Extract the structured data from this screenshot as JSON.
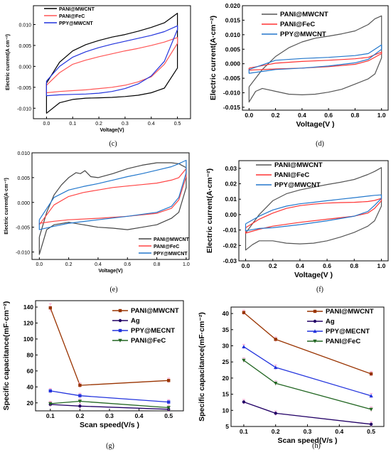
{
  "chart_data": [
    {
      "id": "c",
      "type": "line",
      "caption": "(c)",
      "xlabel": "Voltage(V)",
      "ylabel": "Electric current(A cm⁻²)",
      "xlim": [
        -0.05,
        0.55
      ],
      "ylim": [
        -0.0125,
        0.0145
      ],
      "xticks": [
        "0.0",
        "0.1",
        "0.2",
        "0.3",
        "0.4",
        "0.5"
      ],
      "yticks": [
        "-0.010",
        "-0.005",
        "0.000",
        "0.005",
        "0.010"
      ],
      "legend": "top-left",
      "series": [
        {
          "name": "PANI@MWCNT",
          "color": "#000000",
          "x": [
            0,
            0.05,
            0.1,
            0.15,
            0.2,
            0.25,
            0.3,
            0.35,
            0.4,
            0.45,
            0.5,
            0.5,
            0.45,
            0.4,
            0.35,
            0.3,
            0.25,
            0.2,
            0.15,
            0.1,
            0.05,
            0,
            0
          ],
          "y": [
            -0.004,
            0.001,
            0.0037,
            0.0052,
            0.0062,
            0.007,
            0.0076,
            0.0084,
            0.0093,
            0.0104,
            0.0127,
            -0.0004,
            -0.0052,
            -0.0063,
            -0.0069,
            -0.0072,
            -0.0074,
            -0.0075,
            -0.0076,
            -0.0079,
            -0.0087,
            -0.0112,
            -0.004
          ]
        },
        {
          "name": "PANI@FeC",
          "color": "#ff5555",
          "x": [
            0,
            0.05,
            0.1,
            0.15,
            0.2,
            0.25,
            0.3,
            0.35,
            0.4,
            0.45,
            0.5,
            0.5,
            0.45,
            0.4,
            0.35,
            0.3,
            0.25,
            0.2,
            0.15,
            0.1,
            0.05,
            0,
            0
          ],
          "y": [
            -0.0045,
            -0.0015,
            0.0005,
            0.0015,
            0.0023,
            0.003,
            0.0037,
            0.0043,
            0.005,
            0.0058,
            0.0069,
            0.0055,
            0.0005,
            -0.0025,
            -0.0037,
            -0.0045,
            -0.005,
            -0.0053,
            -0.0056,
            -0.0058,
            -0.006,
            -0.0063,
            -0.0045
          ]
        },
        {
          "name": "PPY@MWCNT",
          "color": "#2233dd",
          "x": [
            0,
            0.05,
            0.1,
            0.15,
            0.2,
            0.25,
            0.3,
            0.35,
            0.4,
            0.45,
            0.5,
            0.5,
            0.45,
            0.4,
            0.35,
            0.3,
            0.25,
            0.2,
            0.15,
            0.1,
            0.05,
            0,
            0
          ],
          "y": [
            -0.0035,
            0,
            0.0022,
            0.0035,
            0.0045,
            0.0053,
            0.006,
            0.0067,
            0.0074,
            0.0083,
            0.0097,
            0.0088,
            0.0012,
            -0.0023,
            -0.0042,
            -0.0053,
            -0.006,
            -0.0064,
            -0.0066,
            -0.0067,
            -0.0068,
            -0.007,
            -0.0035
          ]
        }
      ]
    },
    {
      "id": "d",
      "type": "line",
      "caption": "(d)",
      "xlabel": "Voltage(V )",
      "ylabel": "Electric current(A·cm⁻²)",
      "xlim": [
        -0.05,
        1.05
      ],
      "ylim": [
        -0.016,
        0.02
      ],
      "xticks": [
        "0.0",
        "0.2",
        "0.4",
        "0.6",
        "0.8",
        "1.0"
      ],
      "yticks": [
        "-0.015",
        "-0.010",
        "-0.005",
        "0.000",
        "0.005",
        "0.010",
        "0.015",
        "0.020"
      ],
      "legend": "top-left",
      "series": [
        {
          "name": "PANI@MWCNT",
          "color": "#555555",
          "x": [
            0,
            0.1,
            0.2,
            0.3,
            0.4,
            0.5,
            0.6,
            0.7,
            0.8,
            0.9,
            0.95,
            1.0,
            1.0,
            0.95,
            0.9,
            0.8,
            0.7,
            0.6,
            0.5,
            0.4,
            0.3,
            0.2,
            0.1,
            0.05,
            0,
            0
          ],
          "y": [
            -0.008,
            -0.002,
            0.0025,
            0.0055,
            0.0075,
            0.0088,
            0.0095,
            0.0103,
            0.0113,
            0.0135,
            0.0155,
            0.0165,
            0.002,
            -0.0035,
            -0.0052,
            -0.007,
            -0.0088,
            -0.0098,
            -0.0105,
            -0.0107,
            -0.0105,
            -0.0095,
            -0.0085,
            -0.0095,
            -0.0132,
            -0.008
          ]
        },
        {
          "name": "PANI@FeC",
          "color": "#ff3333",
          "x": [
            0,
            0.2,
            0.4,
            0.6,
            0.8,
            0.9,
            1.0,
            1.0,
            0.9,
            0.8,
            0.6,
            0.4,
            0.2,
            0,
            0
          ],
          "y": [
            -0.0015,
            0.0002,
            0.0008,
            0.0012,
            0.0017,
            0.0022,
            0.004,
            0.0035,
            0.001,
            -0.0002,
            -0.001,
            -0.0015,
            -0.0018,
            -0.0022,
            -0.0015
          ]
        },
        {
          "name": "PPY@MWCNT",
          "color": "#2277cc",
          "x": [
            0,
            0.2,
            0.4,
            0.6,
            0.8,
            0.9,
            1.0,
            1.0,
            0.9,
            0.8,
            0.6,
            0.4,
            0.2,
            0,
            0
          ],
          "y": [
            -0.002,
            0.0012,
            0.0018,
            0.0022,
            0.0028,
            0.0035,
            0.0065,
            0.005,
            0.0015,
            0.0003,
            -0.0008,
            -0.0015,
            -0.002,
            -0.0033,
            -0.002
          ]
        }
      ]
    },
    {
      "id": "e",
      "type": "line",
      "caption": "(e)",
      "xlabel": "Voltage(V)",
      "ylabel": "Electric current(A·cm⁻²)",
      "xlim": [
        -0.05,
        1.02
      ],
      "ylim": [
        -0.0115,
        0.01
      ],
      "xticks": [
        "0.0",
        "0.2",
        "0.4",
        "0.6",
        "0.8",
        "1.0"
      ],
      "yticks": [
        "-0.010",
        "-0.005",
        "0.000",
        "0.005",
        "0.010"
      ],
      "legend": "bottom-right",
      "series": [
        {
          "name": "PANI@MWCNT",
          "color": "#444444",
          "x": [
            0,
            0.05,
            0.1,
            0.15,
            0.2,
            0.25,
            0.28,
            0.31,
            0.35,
            0.4,
            0.5,
            0.6,
            0.7,
            0.8,
            0.9,
            0.95,
            1.0,
            1.0,
            0.95,
            0.9,
            0.8,
            0.7,
            0.6,
            0.5,
            0.4,
            0.3,
            0.2,
            0.1,
            0.05,
            0,
            0
          ],
          "y": [
            -0.007,
            -0.002,
            0.0015,
            0.0035,
            0.005,
            0.006,
            0.0058,
            0.0064,
            0.0052,
            0.005,
            0.0058,
            0.0068,
            0.0075,
            0.008,
            0.008,
            0.0078,
            0.007,
            0.003,
            -0.002,
            -0.0032,
            -0.0045,
            -0.005,
            -0.0055,
            -0.0052,
            -0.005,
            -0.0045,
            -0.004,
            -0.0045,
            -0.0055,
            -0.0105,
            -0.007
          ]
        },
        {
          "name": "PANI@FeC",
          "color": "#ff4444",
          "x": [
            0,
            0.1,
            0.2,
            0.3,
            0.4,
            0.5,
            0.6,
            0.7,
            0.8,
            0.9,
            0.95,
            1.0,
            1.0,
            0.95,
            0.9,
            0.8,
            0.6,
            0.4,
            0.2,
            0.1,
            0,
            0
          ],
          "y": [
            -0.0045,
            -0.0005,
            0.0012,
            0.002,
            0.0025,
            0.003,
            0.0033,
            0.0036,
            0.0039,
            0.0045,
            0.005,
            0.0068,
            0.0052,
            0.0005,
            -0.0012,
            -0.0022,
            -0.0028,
            -0.0032,
            -0.0035,
            -0.0038,
            -0.0042,
            -0.0045
          ]
        },
        {
          "name": "PPY@MWCNT",
          "color": "#2277cc",
          "x": [
            0,
            0.1,
            0.2,
            0.3,
            0.4,
            0.5,
            0.6,
            0.7,
            0.8,
            0.9,
            0.95,
            1.0,
            1.0,
            0.95,
            0.9,
            0.8,
            0.6,
            0.4,
            0.2,
            0.1,
            0,
            0
          ],
          "y": [
            -0.0035,
            0.001,
            0.0025,
            0.0032,
            0.0038,
            0.0045,
            0.0052,
            0.0058,
            0.0065,
            0.0072,
            0.0078,
            0.0085,
            0.006,
            0.001,
            -0.0008,
            -0.002,
            -0.0028,
            -0.0035,
            -0.0042,
            -0.0048,
            -0.0055,
            -0.0035
          ]
        }
      ]
    },
    {
      "id": "f",
      "type": "line",
      "caption": "(f)",
      "xlabel": "Voltage(V )",
      "ylabel": "Electric current(A·cm⁻²)",
      "xlim": [
        -0.05,
        1.05
      ],
      "ylim": [
        -0.03,
        0.035
      ],
      "xticks": [
        "0.0",
        "0.2",
        "0.4",
        "0.6",
        "0.8",
        "1.0"
      ],
      "yticks": [
        "-0.03",
        "-0.02",
        "-0.01",
        "0.00",
        "0.01",
        "0.02",
        "0.03"
      ],
      "legend": "top-left",
      "series": [
        {
          "name": "PANI@MWCNT",
          "color": "#555555",
          "x": [
            0,
            0.1,
            0.2,
            0.3,
            0.4,
            0.5,
            0.6,
            0.7,
            0.8,
            0.9,
            0.95,
            1.0,
            1.0,
            0.95,
            0.9,
            0.8,
            0.7,
            0.6,
            0.5,
            0.4,
            0.3,
            0.2,
            0.1,
            0.05,
            0,
            0
          ],
          "y": [
            -0.012,
            0,
            0.009,
            0.0135,
            0.016,
            0.0178,
            0.0195,
            0.021,
            0.0228,
            0.026,
            0.028,
            0.0305,
            0.0055,
            -0.004,
            -0.0075,
            -0.0115,
            -0.0145,
            -0.017,
            -0.0185,
            -0.019,
            -0.0185,
            -0.017,
            -0.017,
            -0.0195,
            -0.023,
            -0.012
          ]
        },
        {
          "name": "PANI@FeC",
          "color": "#ff3333",
          "x": [
            0,
            0.1,
            0.2,
            0.3,
            0.4,
            0.5,
            0.6,
            0.7,
            0.8,
            0.9,
            0.95,
            1.0,
            1.0,
            0.95,
            0.9,
            0.8,
            0.6,
            0.4,
            0.2,
            0.1,
            0,
            0
          ],
          "y": [
            -0.0085,
            -0.003,
            0.001,
            0.004,
            0.0058,
            0.0068,
            0.0075,
            0.0078,
            0.008,
            0.0085,
            0.0092,
            0.0105,
            0.009,
            0.004,
            0.001,
            -0.001,
            -0.003,
            -0.005,
            -0.0075,
            -0.0095,
            -0.012,
            -0.0085
          ]
        },
        {
          "name": "PPY@MWCNT",
          "color": "#2277cc",
          "x": [
            0,
            0.1,
            0.2,
            0.3,
            0.4,
            0.5,
            0.6,
            0.7,
            0.8,
            0.9,
            0.95,
            1.0,
            1.0,
            0.95,
            0.9,
            0.8,
            0.6,
            0.4,
            0.2,
            0.1,
            0,
            0
          ],
          "y": [
            -0.006,
            -0.001,
            0.003,
            0.0055,
            0.007,
            0.008,
            0.009,
            0.01,
            0.011,
            0.012,
            0.0125,
            0.0128,
            0.0105,
            0.006,
            0.002,
            -0.001,
            -0.004,
            -0.0065,
            -0.0085,
            -0.009,
            -0.0105,
            -0.006
          ]
        }
      ]
    },
    {
      "id": "g",
      "type": "line",
      "caption": "(g)",
      "xlabel": "Scan speed(V/s )",
      "ylabel": "Specific capacitance(mF·cm⁻²)",
      "xlim": [
        0.05,
        0.55
      ],
      "ylim": [
        10,
        148
      ],
      "xticks": [
        "0.1",
        "0.2",
        "0.3",
        "0.4",
        "0.5"
      ],
      "yticks": [
        "20",
        "40",
        "60",
        "80",
        "100",
        "120",
        "140"
      ],
      "legend": "top-right",
      "series": [
        {
          "name": "PANI@MWCNT",
          "color": "#993300",
          "marker": "square",
          "x": [
            0.1,
            0.2,
            0.5
          ],
          "y": [
            139,
            42,
            48
          ]
        },
        {
          "name": "Ag",
          "color": "#220066",
          "marker": "circle",
          "x": [
            0.1,
            0.2,
            0.5
          ],
          "y": [
            18,
            16,
            12
          ]
        },
        {
          "name": "PPY@MECNT",
          "color": "#2233dd",
          "marker": "square",
          "x": [
            0.1,
            0.2,
            0.5
          ],
          "y": [
            35,
            29,
            21
          ]
        },
        {
          "name": "PANI@FeC",
          "color": "#226622",
          "marker": "triangle-down",
          "x": [
            0.1,
            0.2,
            0.5
          ],
          "y": [
            19,
            22,
            14
          ]
        }
      ]
    },
    {
      "id": "h",
      "type": "line",
      "caption": "(h)",
      "xlabel": "Scan speed(V/s )",
      "ylabel": "Specific capacitance(mF·cm⁻²)",
      "xlim": [
        0.06,
        0.54
      ],
      "ylim": [
        5,
        42
      ],
      "xticks": [
        "0.1",
        "0.2",
        "0.3",
        "0.4",
        "0.5"
      ],
      "yticks": [
        "5",
        "10",
        "15",
        "20",
        "25",
        "30",
        "35",
        "40"
      ],
      "legend": "top-right",
      "series": [
        {
          "name": "PANI@MWCNT",
          "color": "#993300",
          "marker": "square",
          "x": [
            0.1,
            0.2,
            0.5
          ],
          "y": [
            40.3,
            32,
            21.3
          ]
        },
        {
          "name": "Ag",
          "color": "#220066",
          "marker": "circle",
          "x": [
            0.1,
            0.2,
            0.5
          ],
          "y": [
            12.6,
            9.1,
            5.7
          ]
        },
        {
          "name": "PPY@MECNT",
          "color": "#2233dd",
          "marker": "triangle-up",
          "x": [
            0.1,
            0.2,
            0.5
          ],
          "y": [
            29.7,
            23.3,
            14.5
          ]
        },
        {
          "name": "PANI@FeC",
          "color": "#226622",
          "marker": "triangle-down",
          "x": [
            0.1,
            0.2,
            0.5
          ],
          "y": [
            25.5,
            18.4,
            10.3
          ]
        }
      ]
    }
  ]
}
